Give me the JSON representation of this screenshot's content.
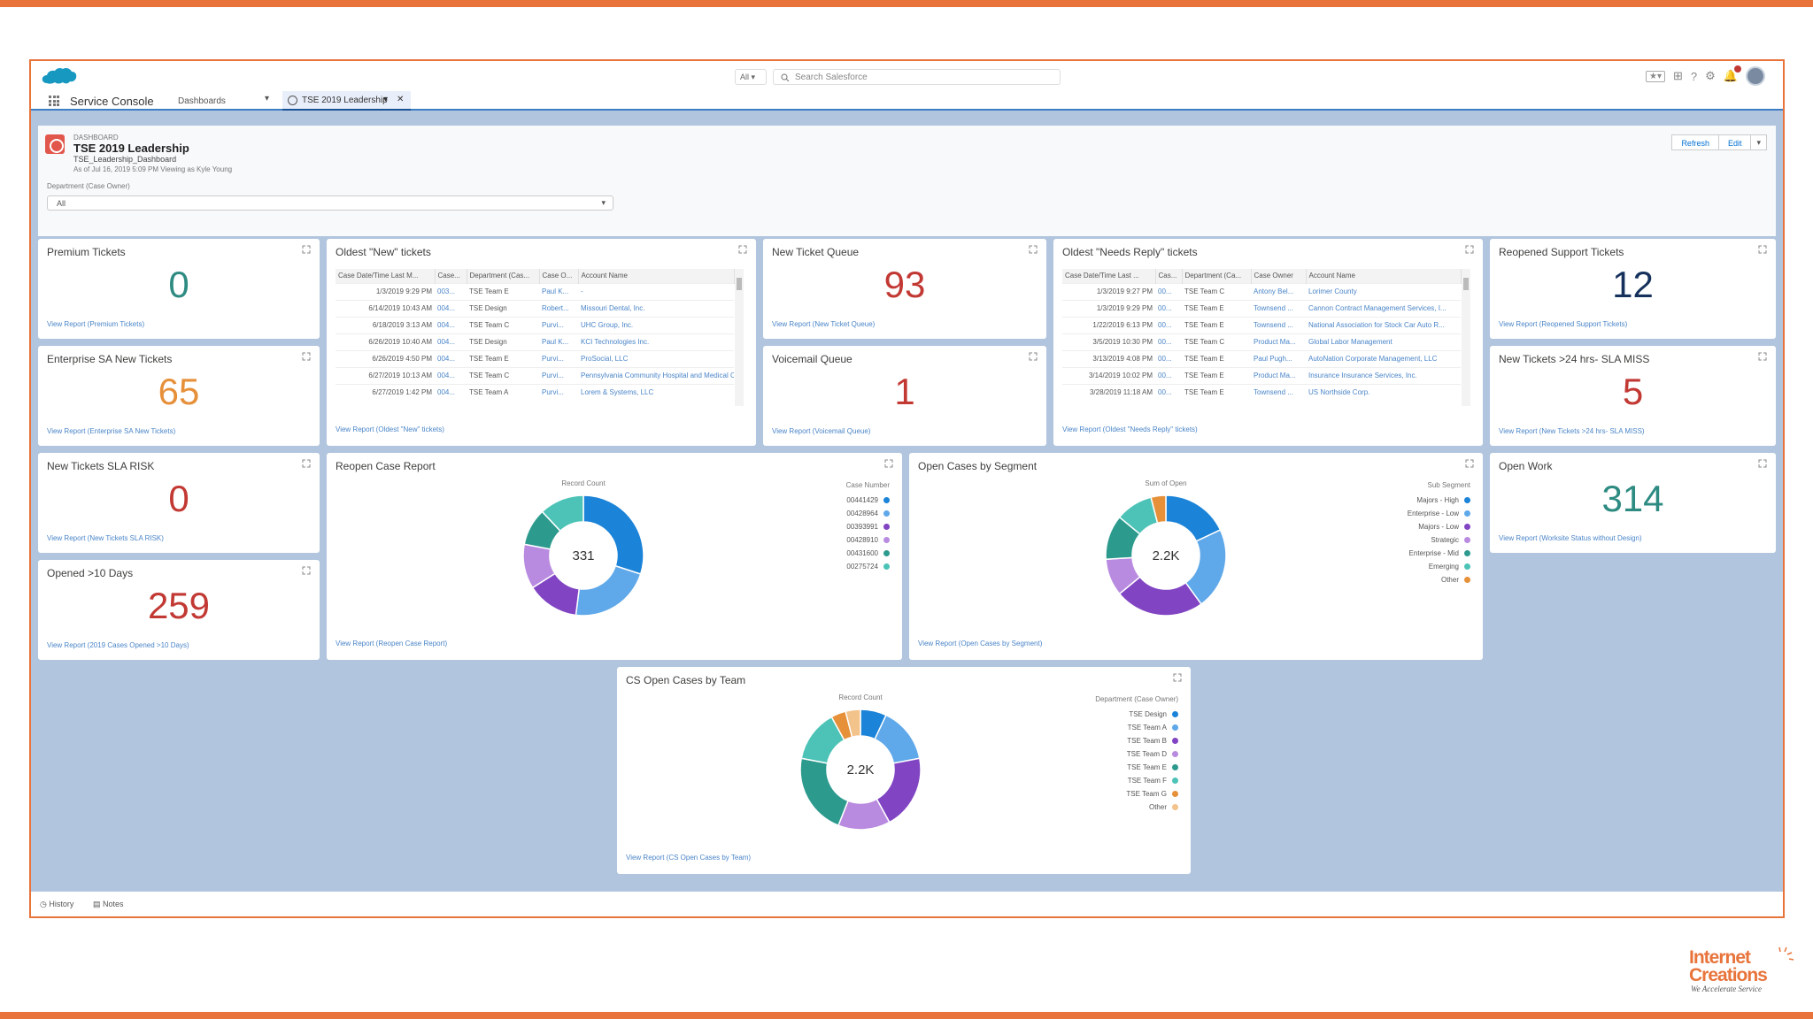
{
  "header": {
    "scope": "All",
    "search_placeholder": "Search Salesforce"
  },
  "nav": {
    "app": "Service Console",
    "selector": "Dashboards",
    "tab": "TSE 2019 Leadership"
  },
  "dashboard": {
    "label": "DASHBOARD",
    "title": "TSE 2019 Leadership",
    "subtitle": "TSE_Leadership_Dashboard",
    "as_of": "As of Jul 16, 2019 5:09 PM Viewing as Kyle Young",
    "filter_label": "Department (Case Owner)",
    "filter_value": "All",
    "refresh": "Refresh",
    "edit": "Edit"
  },
  "cards": {
    "premium": {
      "title": "Premium Tickets",
      "value": "0",
      "link": "View Report (Premium Tickets)",
      "color": "#2e8b82"
    },
    "enterprise": {
      "title": "Enterprise SA New Tickets",
      "value": "65",
      "link": "View Report (Enterprise SA New Tickets)",
      "color": "#e6903a"
    },
    "sla_risk": {
      "title": "New Tickets SLA RISK",
      "value": "0",
      "link": "View Report (New Tickets SLA RISK)",
      "color": "#c23934"
    },
    "opened10": {
      "title": "Opened >10 Days",
      "value": "259",
      "link": "View Report (2019 Cases Opened >10 Days)",
      "color": "#c23934"
    },
    "queue": {
      "title": "New Ticket Queue",
      "value": "93",
      "link": "View Report (New Ticket Queue)",
      "color": "#c23934"
    },
    "voicemail": {
      "title": "Voicemail Queue",
      "value": "1",
      "link": "View Report (Voicemail Queue)",
      "color": "#c23934"
    },
    "reopened": {
      "title": "Reopened Support Tickets",
      "value": "12",
      "link": "View Report (Reopened Support Tickets)",
      "color": "#16325c"
    },
    "sla_miss": {
      "title": "New Tickets >24 hrs- SLA MISS",
      "value": "5",
      "link": "View Report (New Tickets >24 hrs- SLA MISS)",
      "color": "#c23934"
    },
    "open_work": {
      "title": "Open Work",
      "value": "314",
      "link": "View Report (Worksite Status without Design)",
      "color": "#2e8b82"
    }
  },
  "oldest_new": {
    "title": "Oldest \"New\" tickets",
    "link": "View Report (Oldest \"New\" tickets)",
    "columns": [
      "Case Date/Time Last M...",
      "Case...",
      "Department (Cas...",
      "Case O...",
      "Account Name"
    ],
    "rows": [
      [
        "1/3/2019 9:29 PM",
        "003...",
        "TSE Team E",
        "Paul K...",
        "-"
      ],
      [
        "6/14/2019 10:43 AM",
        "004...",
        "TSE Design",
        "Robert...",
        "Missouri Dental, Inc."
      ],
      [
        "6/18/2019 3:13 AM",
        "004...",
        "TSE Team C",
        "Purvi...",
        "UHC Group, Inc."
      ],
      [
        "6/26/2019 10:40 AM",
        "004...",
        "TSE Design",
        "Paul K...",
        "KCI Technologies Inc."
      ],
      [
        "6/26/2019 4:50 PM",
        "004...",
        "TSE Team E",
        "Purvi...",
        "ProSocial, LLC"
      ],
      [
        "6/27/2019 10:13 AM",
        "004...",
        "TSE Team C",
        "Purvi...",
        "Pennsylvania Community Hospital and Medical C..."
      ],
      [
        "6/27/2019 1:42 PM",
        "004...",
        "TSE Team A",
        "Purvi...",
        "Lorem & Systems, LLC"
      ]
    ]
  },
  "oldest_reply": {
    "title": "Oldest \"Needs Reply\" tickets",
    "link": "View Report (Oldest \"Needs Reply\" tickets)",
    "columns": [
      "Case Date/Time Last ...",
      "Cas...",
      "Department (Ca...",
      "Case Owner",
      "Account Name"
    ],
    "rows": [
      [
        "1/3/2019 9:27 PM",
        "00...",
        "TSE Team C",
        "Antony Bel...",
        "Lorimer County"
      ],
      [
        "1/3/2019 9:29 PM",
        "00...",
        "TSE Team E",
        "Townsend ...",
        "Cannon Contract Management Services, I..."
      ],
      [
        "1/22/2019 6:13 PM",
        "00...",
        "TSE Team E",
        "Townsend ...",
        "National Association for Stock Car Auto R..."
      ],
      [
        "3/5/2019 10:30 PM",
        "00...",
        "TSE Team C",
        "Product Ma...",
        "Global Labor Management"
      ],
      [
        "3/13/2019 4:08 PM",
        "00...",
        "TSE Team E",
        "Paul Pugh...",
        "AutoNation Corporate Management, LLC"
      ],
      [
        "3/14/2019 10:02 PM",
        "00...",
        "TSE Team E",
        "Product Ma...",
        "Insurance Insurance Services, Inc."
      ],
      [
        "3/28/2019 11:18 AM",
        "00...",
        "TSE Team E",
        "Townsend ...",
        "US Northside Corp."
      ]
    ]
  },
  "reopen_chart": {
    "title": "Reopen Case Report",
    "link": "View Report (Reopen Case Report)"
  },
  "segment_chart": {
    "title": "Open Cases by Segment",
    "link": "View Report (Open Cases by Segment)"
  },
  "team_chart": {
    "title": "CS Open Cases by Team",
    "link": "View Report (CS Open Cases by Team)"
  },
  "chart_data": [
    {
      "type": "pie",
      "id": "reopen",
      "title": "Reopen Case Report",
      "center_label": "331",
      "measure": "Record Count",
      "legend_title": "Case Number",
      "labels": [
        "00441429",
        "00428964",
        "00393991",
        "00428910",
        "00431600",
        "00275724"
      ],
      "values": [
        0.3,
        0.22,
        0.14,
        0.12,
        0.1,
        0.12
      ],
      "colors": [
        "#1b83d8",
        "#5fa8e9",
        "#8144c3",
        "#b98be0",
        "#2d9a8e",
        "#4cc3b6"
      ]
    },
    {
      "type": "pie",
      "id": "segment",
      "title": "Open Cases by Segment",
      "center_label": "2.2K",
      "measure": "Sum of Open",
      "legend_title": "Sub Segment",
      "labels": [
        "Majors - High",
        "Enterprise - Low",
        "Majors - Low",
        "Strategic",
        "Enterprise - Mid",
        "Emerging",
        "Other"
      ],
      "values": [
        0.18,
        0.22,
        0.24,
        0.1,
        0.12,
        0.1,
        0.04
      ],
      "colors": [
        "#1b83d8",
        "#5fa8e9",
        "#8144c3",
        "#b98be0",
        "#2d9a8e",
        "#4cc3b6",
        "#e6903a"
      ]
    },
    {
      "type": "pie",
      "id": "team",
      "title": "CS Open Cases by Team",
      "center_label": "2.2K",
      "measure": "Record Count",
      "legend_title": "Department (Case Owner)",
      "labels": [
        "TSE Design",
        "TSE Team A",
        "TSE Team B",
        "TSE Team D",
        "TSE Team E",
        "TSE Team F",
        "TSE Team G",
        "Other"
      ],
      "values": [
        0.07,
        0.15,
        0.2,
        0.14,
        0.22,
        0.14,
        0.04,
        0.04
      ],
      "colors": [
        "#1b83d8",
        "#5fa8e9",
        "#8144c3",
        "#b98be0",
        "#2d9a8e",
        "#4cc3b6",
        "#e6903a",
        "#f2c38a"
      ]
    }
  ],
  "footer": {
    "history": "History",
    "notes": "Notes"
  },
  "brand": {
    "name1": "Internet",
    "name2": "Creations",
    "tagline": "We Accelerate Service"
  }
}
